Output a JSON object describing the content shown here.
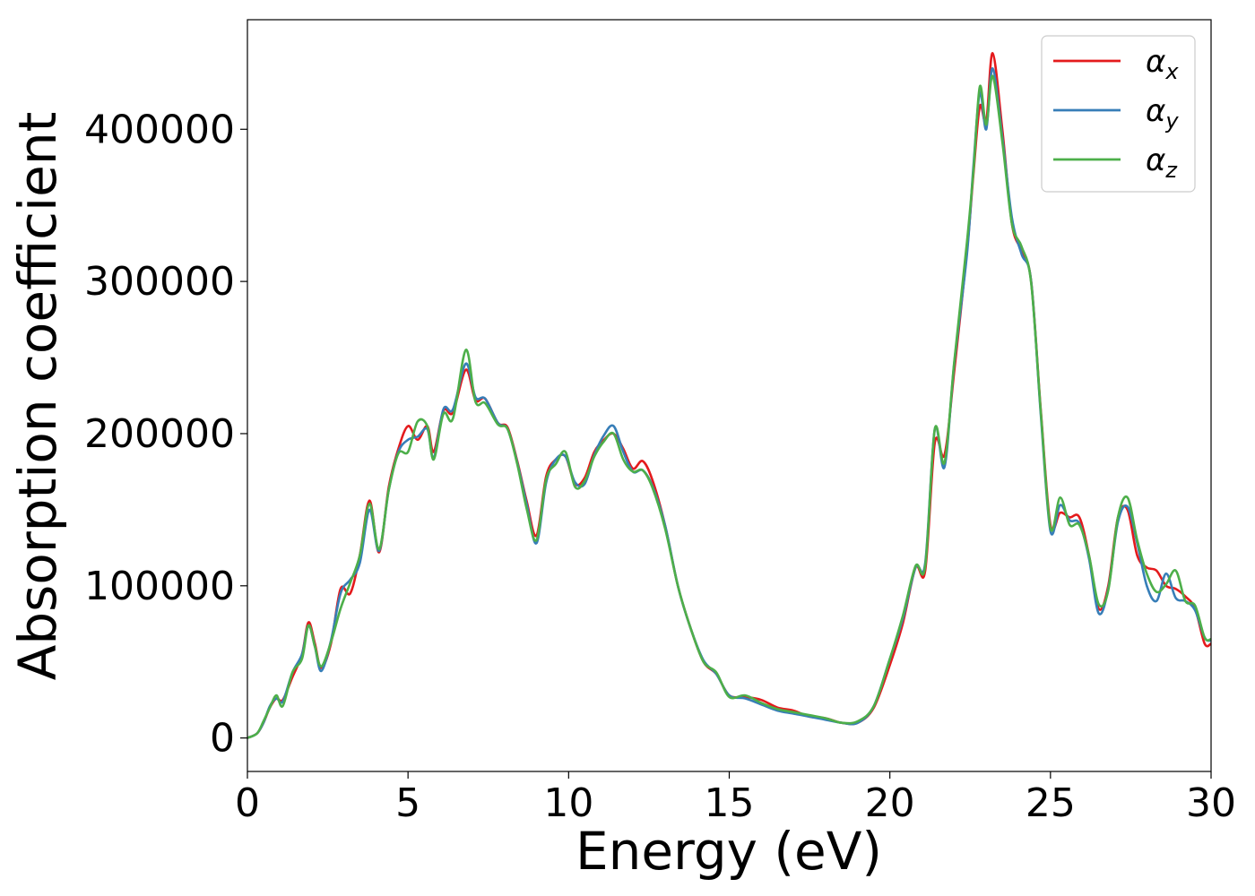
{
  "chart_data": {
    "type": "line",
    "xlabel": "Energy (eV)",
    "ylabel": "Absorption coefficient",
    "xlim": [
      0,
      30
    ],
    "ylim": [
      -22000,
      472000
    ],
    "xticks": [
      0,
      5,
      10,
      15,
      20,
      25,
      30
    ],
    "xtick_labels": [
      "0",
      "5",
      "10",
      "15",
      "20",
      "25",
      "30"
    ],
    "yticks": [
      0,
      100000,
      200000,
      300000,
      400000
    ],
    "ytick_labels": [
      "0",
      "100000",
      "200000",
      "300000",
      "400000"
    ],
    "grid": false,
    "legend_position": "top-right",
    "colors": {
      "alpha_x": "#e41a1c",
      "alpha_y": "#377eb8",
      "alpha_z": "#4daf4a"
    },
    "x": [
      0,
      0.3,
      0.5,
      0.7,
      0.9,
      1.1,
      1.4,
      1.7,
      1.9,
      2.1,
      2.3,
      2.6,
      2.9,
      3.2,
      3.5,
      3.8,
      4.1,
      4.4,
      4.7,
      5.0,
      5.3,
      5.6,
      5.8,
      6.1,
      6.4,
      6.8,
      7.1,
      7.4,
      7.8,
      8.1,
      8.4,
      8.7,
      9.0,
      9.3,
      9.6,
      9.9,
      10.2,
      10.5,
      10.8,
      11.1,
      11.4,
      11.7,
      12.0,
      12.3,
      12.6,
      13.0,
      13.4,
      13.8,
      14.2,
      14.6,
      15.0,
      15.5,
      16.0,
      16.5,
      17.0,
      17.5,
      18.0,
      18.5,
      19.0,
      19.5,
      20.0,
      20.4,
      20.8,
      21.1,
      21.4,
      21.7,
      22.0,
      22.4,
      22.6,
      22.8,
      23.0,
      23.2,
      23.5,
      23.8,
      24.1,
      24.4,
      24.7,
      25.0,
      25.3,
      25.6,
      25.9,
      26.2,
      26.5,
      26.8,
      27.1,
      27.4,
      27.7,
      28.0,
      28.3,
      28.6,
      28.9,
      29.2,
      29.5,
      29.8,
      30.0
    ],
    "series": [
      {
        "name": "α_x",
        "values": [
          0,
          3000,
          10000,
          20000,
          26000,
          25000,
          40000,
          55000,
          76000,
          62000,
          46000,
          62000,
          98000,
          95000,
          120000,
          156000,
          122000,
          165000,
          190000,
          205000,
          196000,
          205000,
          188000,
          215000,
          214000,
          242000,
          222000,
          223000,
          207000,
          204000,
          182000,
          155000,
          133000,
          172000,
          183000,
          185000,
          167000,
          171000,
          188000,
          196000,
          200000,
          190000,
          177000,
          182000,
          170000,
          140000,
          100000,
          72000,
          50000,
          42000,
          28000,
          27000,
          25000,
          20000,
          18000,
          14000,
          13000,
          10000,
          10000,
          20000,
          48000,
          75000,
          112000,
          110000,
          194000,
          186000,
          240000,
          320000,
          370000,
          415000,
          405000,
          450000,
          400000,
          338000,
          320000,
          300000,
          215000,
          140000,
          148000,
          145000,
          145000,
          120000,
          85000,
          100000,
          145000,
          150000,
          120000,
          112000,
          110000,
          100000,
          98000,
          93000,
          85000,
          62000,
          62000
        ]
      },
      {
        "name": "α_y",
        "values": [
          0,
          3000,
          10000,
          21000,
          26000,
          24000,
          43000,
          55000,
          74000,
          60000,
          44000,
          64000,
          95000,
          104000,
          115000,
          150000,
          123000,
          163000,
          188000,
          196000,
          198000,
          203000,
          184000,
          216000,
          216000,
          246000,
          224000,
          223000,
          207000,
          203000,
          181000,
          153000,
          128000,
          168000,
          183000,
          185000,
          168000,
          167000,
          186000,
          199000,
          205000,
          188000,
          175000,
          176000,
          166000,
          140000,
          100000,
          72000,
          51000,
          42000,
          28000,
          26000,
          22000,
          18000,
          16000,
          14000,
          12000,
          10000,
          10000,
          21000,
          52000,
          78000,
          112000,
          115000,
          203000,
          178000,
          245000,
          318000,
          375000,
          424000,
          400000,
          440000,
          395000,
          342000,
          318000,
          300000,
          212000,
          136000,
          153000,
          143000,
          141000,
          118000,
          82000,
          98000,
          142000,
          152000,
          128000,
          100000,
          90000,
          108000,
          92000,
          90000,
          84000,
          66000,
          64000
        ]
      },
      {
        "name": "α_z",
        "values": [
          0,
          3000,
          11000,
          20000,
          28000,
          21000,
          43000,
          52000,
          74000,
          60000,
          47000,
          63000,
          85000,
          102000,
          120000,
          154000,
          124000,
          163000,
          187000,
          188000,
          208000,
          205000,
          183000,
          213000,
          210000,
          255000,
          221000,
          220000,
          206000,
          203000,
          180000,
          150000,
          130000,
          170000,
          180000,
          188000,
          165000,
          169000,
          185000,
          195000,
          200000,
          183000,
          175000,
          176000,
          165000,
          138000,
          100000,
          72000,
          50000,
          43000,
          27000,
          28000,
          23000,
          19000,
          17000,
          15000,
          13000,
          10000,
          11000,
          21000,
          52000,
          80000,
          113000,
          113000,
          203000,
          181000,
          246000,
          326000,
          372000,
          428000,
          403000,
          435000,
          392000,
          338000,
          323000,
          299000,
          214000,
          138000,
          158000,
          140000,
          140000,
          120000,
          88000,
          97000,
          145000,
          158000,
          130000,
          108000,
          96000,
          101000,
          110000,
          90000,
          87000,
          66000,
          65000
        ]
      }
    ]
  }
}
